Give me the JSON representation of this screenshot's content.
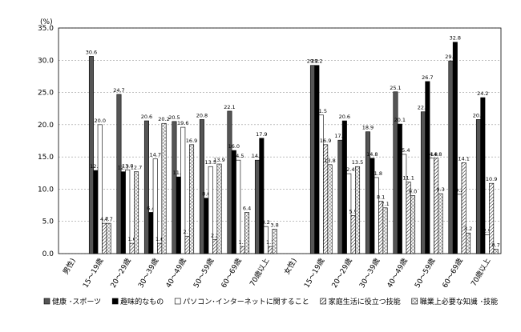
{
  "chart_data": {
    "type": "bar",
    "y_unit_label": "(%)",
    "categories": [
      "男性)",
      "15～19歳",
      "20～29歳",
      "30～39歳",
      "40～49歳",
      "50～59歳",
      "60～69歳",
      "70歳以上",
      "女性)",
      "15～19歳",
      "20～29歳",
      "30～39歳",
      "40～49歳",
      "50～59歳",
      "60～69歳",
      "70歳以上"
    ],
    "series": [
      {
        "name": "健康 ･スポーツ",
        "color": "#555555",
        "pattern": "solid",
        "values": [
          null,
          30.6,
          24.7,
          20.6,
          20.5,
          20.8,
          22.1,
          14.5,
          null,
          29.2,
          17.6,
          18.9,
          25.1,
          22.0,
          29.9,
          20.8
        ],
        "value_labels": [
          null,
          "30.6",
          "24.7",
          "20.6",
          "20.5",
          "20.8",
          "22.1",
          "14.5",
          null,
          "29.2",
          "17.6",
          "18.9",
          "25.1",
          "22.0",
          "29.9",
          "20.8"
        ]
      },
      {
        "name": "趣味的なもの",
        "color": "#000000",
        "pattern": "solid",
        "values": [
          null,
          12.9,
          12.7,
          6.4,
          11.9,
          8.6,
          16.0,
          17.9,
          null,
          29.2,
          20.6,
          14.8,
          20.1,
          26.7,
          32.8,
          24.2
        ],
        "value_labels": [
          null,
          "12.9",
          "12.7",
          "6.4",
          "11.9",
          "8.6",
          "16.0",
          "17.9",
          null,
          "29.2",
          "20.6",
          "14.8",
          "20.1",
          "26.7",
          "32.8",
          "24.2"
        ]
      },
      {
        "name": "パソコン･インターネットに関すること",
        "color": "#ffffff",
        "pattern": "solid",
        "values": [
          null,
          20.0,
          13.0,
          14.7,
          19.6,
          13.5,
          14.5,
          4.2,
          null,
          21.5,
          12.4,
          11.8,
          15.4,
          14.8,
          9.2,
          2.9
        ],
        "value_labels": [
          null,
          "20.0",
          "13.0",
          "14.7",
          "19.6",
          "13.5",
          "14.5",
          "4.2",
          null,
          "21.5",
          "12.4",
          "11.8",
          "15.4",
          "14.8",
          "9.2",
          "2.9"
        ]
      },
      {
        "name": "家庭生活に役立つ技能",
        "color": "#ffffff",
        "pattern": "hatch",
        "values": [
          null,
          4.7,
          1.6,
          1.6,
          2.7,
          2.2,
          1.1,
          1.1,
          null,
          16.9,
          5.9,
          8.1,
          11.1,
          14.8,
          14.1,
          10.9
        ],
        "value_labels": [
          null,
          "4.7",
          "1.6",
          "1.6",
          "2.7",
          "2.2",
          "1.1",
          "1.1",
          null,
          "16.9",
          "5.9",
          "8.1",
          "11.1",
          "14.8",
          "14.1",
          "10.9"
        ]
      },
      {
        "name": "職業上必要な知識 ･技能",
        "color": "#ffffff",
        "pattern": "crosshatch",
        "values": [
          null,
          4.7,
          12.7,
          20.2,
          16.9,
          13.9,
          6.4,
          3.8,
          null,
          13.8,
          13.5,
          7.1,
          9.0,
          9.3,
          3.2,
          0.7
        ],
        "value_labels": [
          null,
          "4.7",
          "12.7",
          "20.2",
          "16.9",
          "13.9",
          "6.4",
          "3.8",
          null,
          "13.8",
          "13.5",
          "7.1",
          "9.0",
          "9.3",
          "3.2",
          "0.7"
        ]
      }
    ],
    "ylim": [
      0,
      35
    ],
    "yticks": [
      {
        "value": 0,
        "label": "0.0"
      },
      {
        "value": 5,
        "label": "5.0"
      },
      {
        "value": 10,
        "label": "10.0"
      },
      {
        "value": 15,
        "label": "15.0"
      },
      {
        "value": 20,
        "label": "20.0"
      },
      {
        "value": 25,
        "label": "25.0"
      },
      {
        "value": 30,
        "label": "30.0"
      },
      {
        "value": 35,
        "label": "35.0"
      }
    ],
    "grid": true,
    "legend": "bottom"
  }
}
